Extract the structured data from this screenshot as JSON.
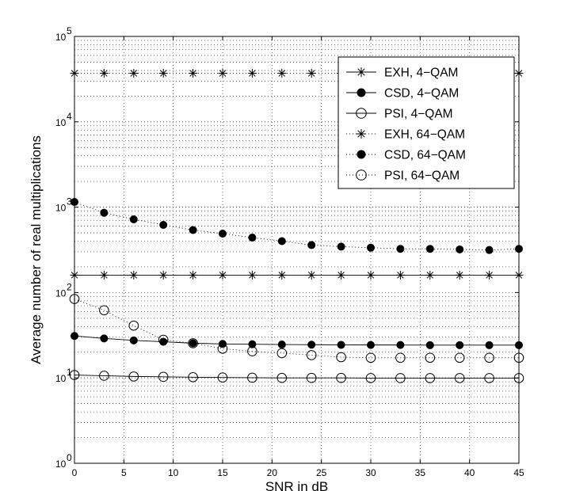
{
  "chart_data": {
    "type": "line",
    "title": "",
    "xlabel": "SNR in dB",
    "ylabel": "Average number of real multiplications",
    "xlim": [
      0,
      45
    ],
    "ylim": [
      1,
      100000
    ],
    "yscale": "log",
    "grid": true,
    "legend_position": "top-right",
    "x_ticks": [
      "0",
      "5",
      "10",
      "15",
      "20",
      "25",
      "30",
      "35",
      "40",
      "45"
    ],
    "y_ticks": [
      {
        "base": "10",
        "exp": "0"
      },
      {
        "base": "10",
        "exp": "1"
      },
      {
        "base": "10",
        "exp": "2"
      },
      {
        "base": "10",
        "exp": "3"
      },
      {
        "base": "10",
        "exp": "4"
      },
      {
        "base": "10",
        "exp": "5"
      }
    ],
    "x": [
      0,
      3,
      6,
      9,
      12,
      15,
      18,
      21,
      24,
      27,
      30,
      33,
      36,
      39,
      42,
      45
    ],
    "series": [
      {
        "name": "EXH, 4−QAM",
        "marker": "star",
        "line": "solid",
        "values": [
          160,
          160,
          160,
          160,
          160,
          160,
          160,
          160,
          160,
          160,
          160,
          160,
          160,
          160,
          160,
          160
        ]
      },
      {
        "name": "CSD, 4−QAM",
        "marker": "filled-circle",
        "line": "solid",
        "values": [
          31,
          29,
          27.5,
          26.5,
          25.5,
          25,
          24.8,
          24.6,
          24.5,
          24.4,
          24.3,
          24.3,
          24.2,
          24.2,
          24.2,
          24.2
        ]
      },
      {
        "name": "PSI, 4−QAM",
        "marker": "open-circle",
        "line": "solid",
        "values": [
          10.8,
          10.6,
          10.4,
          10.3,
          10.2,
          10.1,
          10.05,
          10,
          10,
          10,
          9.95,
          9.95,
          9.95,
          9.95,
          9.95,
          9.95
        ]
      },
      {
        "name": "EXH, 64−QAM",
        "marker": "star",
        "line": "dotted",
        "values": [
          37000,
          37000,
          37000,
          37000,
          37000,
          37000,
          37000,
          37000,
          37000,
          37000,
          37000,
          37000,
          37000,
          37000,
          37000,
          37000
        ]
      },
      {
        "name": "CSD, 64−QAM",
        "marker": "filled-circle",
        "line": "dotted",
        "values": [
          1150,
          860,
          720,
          620,
          540,
          490,
          440,
          400,
          360,
          345,
          335,
          325,
          325,
          320,
          315,
          325
        ]
      },
      {
        "name": "PSI, 64−QAM",
        "marker": "open-circle",
        "line": "dotted",
        "values": [
          84,
          62,
          41,
          28,
          25.5,
          22,
          20.5,
          19.5,
          18.5,
          17.5,
          17.2,
          17.2,
          17.2,
          17.2,
          17.2,
          17.2
        ]
      }
    ],
    "colors": {
      "axis": "#000000",
      "grid": "#555555",
      "series": "#000000",
      "legend_bg": "#ffffff"
    }
  }
}
